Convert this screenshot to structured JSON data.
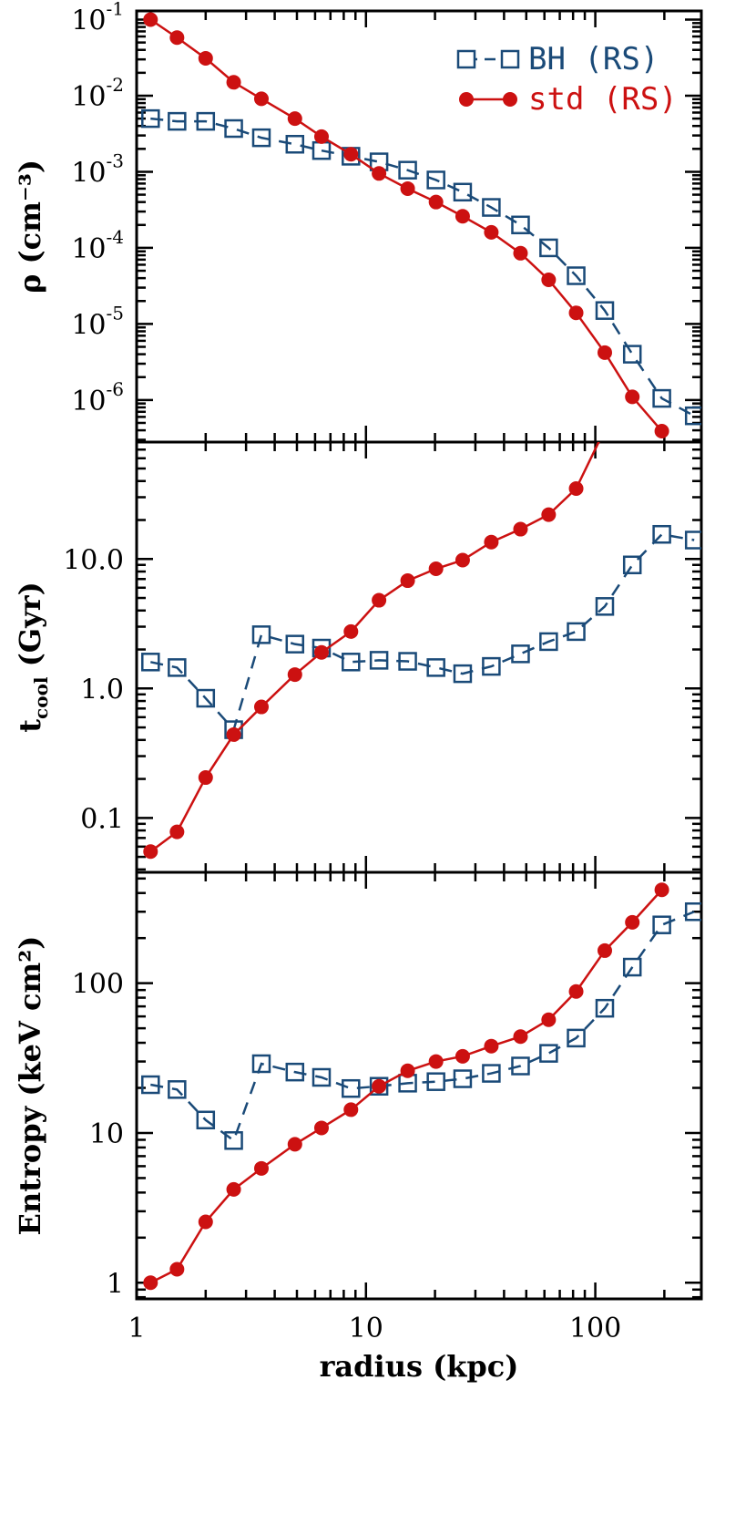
{
  "chart_data": {
    "type": "line",
    "shared_x": {
      "xlabel": "radius (kpc)",
      "scale": "log",
      "xlim": [
        1,
        290
      ],
      "ticks": [
        "1",
        "10",
        "100"
      ]
    },
    "legend": {
      "placement": "top-right",
      "entries": [
        {
          "label": "BH (RS)",
          "color": "#1a4a78",
          "marker": "open-square",
          "line": "dashed"
        },
        {
          "label": "std (RS)",
          "color": "#cc1111",
          "marker": "filled-circle",
          "line": "solid"
        }
      ]
    },
    "colors": {
      "bh": "#1a4a78",
      "std": "#cc1111",
      "axis": "#000000"
    },
    "panels": [
      {
        "id": "density",
        "ylabel": "ρ (cm⁻³)",
        "scale": "log",
        "ylim": [
          2.8e-07,
          0.13
        ],
        "yticks": [
          {
            "value": 0.1,
            "mant": "10",
            "exp": "-1"
          },
          {
            "value": 0.01,
            "mant": "10",
            "exp": "-2"
          },
          {
            "value": 0.001,
            "mant": "10",
            "exp": "-3"
          },
          {
            "value": 0.0001,
            "mant": "10",
            "exp": "-4"
          },
          {
            "value": 1e-05,
            "mant": "10",
            "exp": "-5"
          },
          {
            "value": 1e-06,
            "mant": "10",
            "exp": "-6"
          }
        ],
        "series": [
          {
            "name": "BH (RS)",
            "key": "bh",
            "x": [
              1.15,
              1.5,
              2.0,
              2.65,
              3.5,
              4.9,
              6.4,
              8.6,
              11.4,
              15.2,
              20.2,
              26.4,
              35.2,
              47.2,
              62.6,
              82.5,
              110,
              145,
              195,
              270
            ],
            "y": [
              0.005,
              0.0046,
              0.0046,
              0.0037,
              0.0028,
              0.0023,
              0.0019,
              0.0016,
              0.00135,
              0.00105,
              0.00078,
              0.00054,
              0.00034,
              0.0002,
              0.0001,
              4.3e-05,
              1.5e-05,
              4e-06,
              1.05e-06,
              6.2e-07
            ]
          },
          {
            "name": "std (RS)",
            "key": "std",
            "x": [
              1.15,
              1.5,
              2.0,
              2.65,
              3.5,
              4.9,
              6.4,
              8.6,
              11.4,
              15.2,
              20.2,
              26.4,
              35.2,
              47.2,
              62.6,
              82.5,
              110,
              145,
              195
            ],
            "y": [
              0.1,
              0.058,
              0.031,
              0.015,
              0.0091,
              0.005,
              0.0029,
              0.0017,
              0.00095,
              0.0006,
              0.0004,
              0.00026,
              0.00016,
              8.5e-05,
              3.8e-05,
              1.4e-05,
              4.2e-06,
              1.1e-06,
              3.9e-07
            ]
          }
        ]
      },
      {
        "id": "tcool",
        "ylabel": "tcool (Gyr)",
        "ylabel_main": "t",
        "ylabel_sub": "cool",
        "ylabel_rest": " (Gyr)",
        "scale": "log",
        "ylim": [
          0.038,
          80
        ],
        "yticks": [
          {
            "value": 0.1,
            "label": "0.1"
          },
          {
            "value": 1.0,
            "label": "1.0"
          },
          {
            "value": 10.0,
            "label": "10.0"
          }
        ],
        "series": [
          {
            "name": "BH (RS)",
            "key": "bh",
            "x": [
              1.15,
              1.5,
              2.0,
              2.65,
              3.5,
              4.9,
              6.4,
              8.6,
              11.4,
              15.2,
              20.2,
              26.4,
              35.2,
              47.2,
              62.6,
              82.5,
              110,
              145,
              195,
              270
            ],
            "y": [
              1.6,
              1.45,
              0.84,
              0.48,
              2.6,
              2.2,
              2.05,
              1.6,
              1.65,
              1.62,
              1.45,
              1.3,
              1.48,
              1.85,
              2.3,
              2.75,
              4.3,
              9.0,
              15.5,
              14.0
            ]
          },
          {
            "name": "std (RS)",
            "key": "std",
            "x": [
              1.15,
              1.5,
              2.0,
              2.65,
              3.5,
              4.9,
              6.4,
              8.6,
              11.4,
              15.2,
              20.2,
              26.4,
              35.2,
              47.2,
              62.6,
              82.5,
              110
            ],
            "y": [
              0.055,
              0.078,
              0.205,
              0.44,
              0.72,
              1.28,
              1.9,
              2.75,
              4.8,
              6.8,
              8.4,
              9.8,
              13.5,
              17.0,
              22.0,
              35.0,
              100.0
            ]
          }
        ]
      },
      {
        "id": "entropy",
        "ylabel": "Entropy (keV cm²)",
        "scale": "log",
        "ylim": [
          0.78,
          550
        ],
        "yticks": [
          {
            "value": 1,
            "label": "1"
          },
          {
            "value": 10,
            "label": "10"
          },
          {
            "value": 100,
            "label": "100"
          }
        ],
        "series": [
          {
            "name": "BH (RS)",
            "key": "bh",
            "x": [
              1.15,
              1.5,
              2.0,
              2.65,
              3.5,
              4.9,
              6.4,
              8.6,
              11.4,
              15.2,
              20.2,
              26.4,
              35.2,
              47.2,
              62.6,
              82.5,
              110,
              145,
              195,
              270
            ],
            "y": [
              21,
              19.5,
              12.2,
              8.9,
              29,
              25.5,
              23.5,
              19.8,
              20.5,
              21.5,
              22,
              23,
              25,
              28,
              34,
              43,
              68,
              128,
              245,
              300
            ]
          },
          {
            "name": "std (RS)",
            "key": "std",
            "x": [
              1.15,
              1.5,
              2.0,
              2.65,
              3.5,
              4.9,
              6.4,
              8.6,
              11.4,
              15.2,
              20.2,
              26.4,
              35.2,
              47.2,
              62.6,
              82.5,
              110,
              145,
              195
            ],
            "y": [
              1.0,
              1.23,
              2.55,
              4.2,
              5.8,
              8.4,
              10.8,
              14.3,
              20.5,
              26,
              30,
              32.5,
              38,
              44,
              57,
              88,
              165,
              255,
              420
            ]
          }
        ]
      }
    ]
  }
}
